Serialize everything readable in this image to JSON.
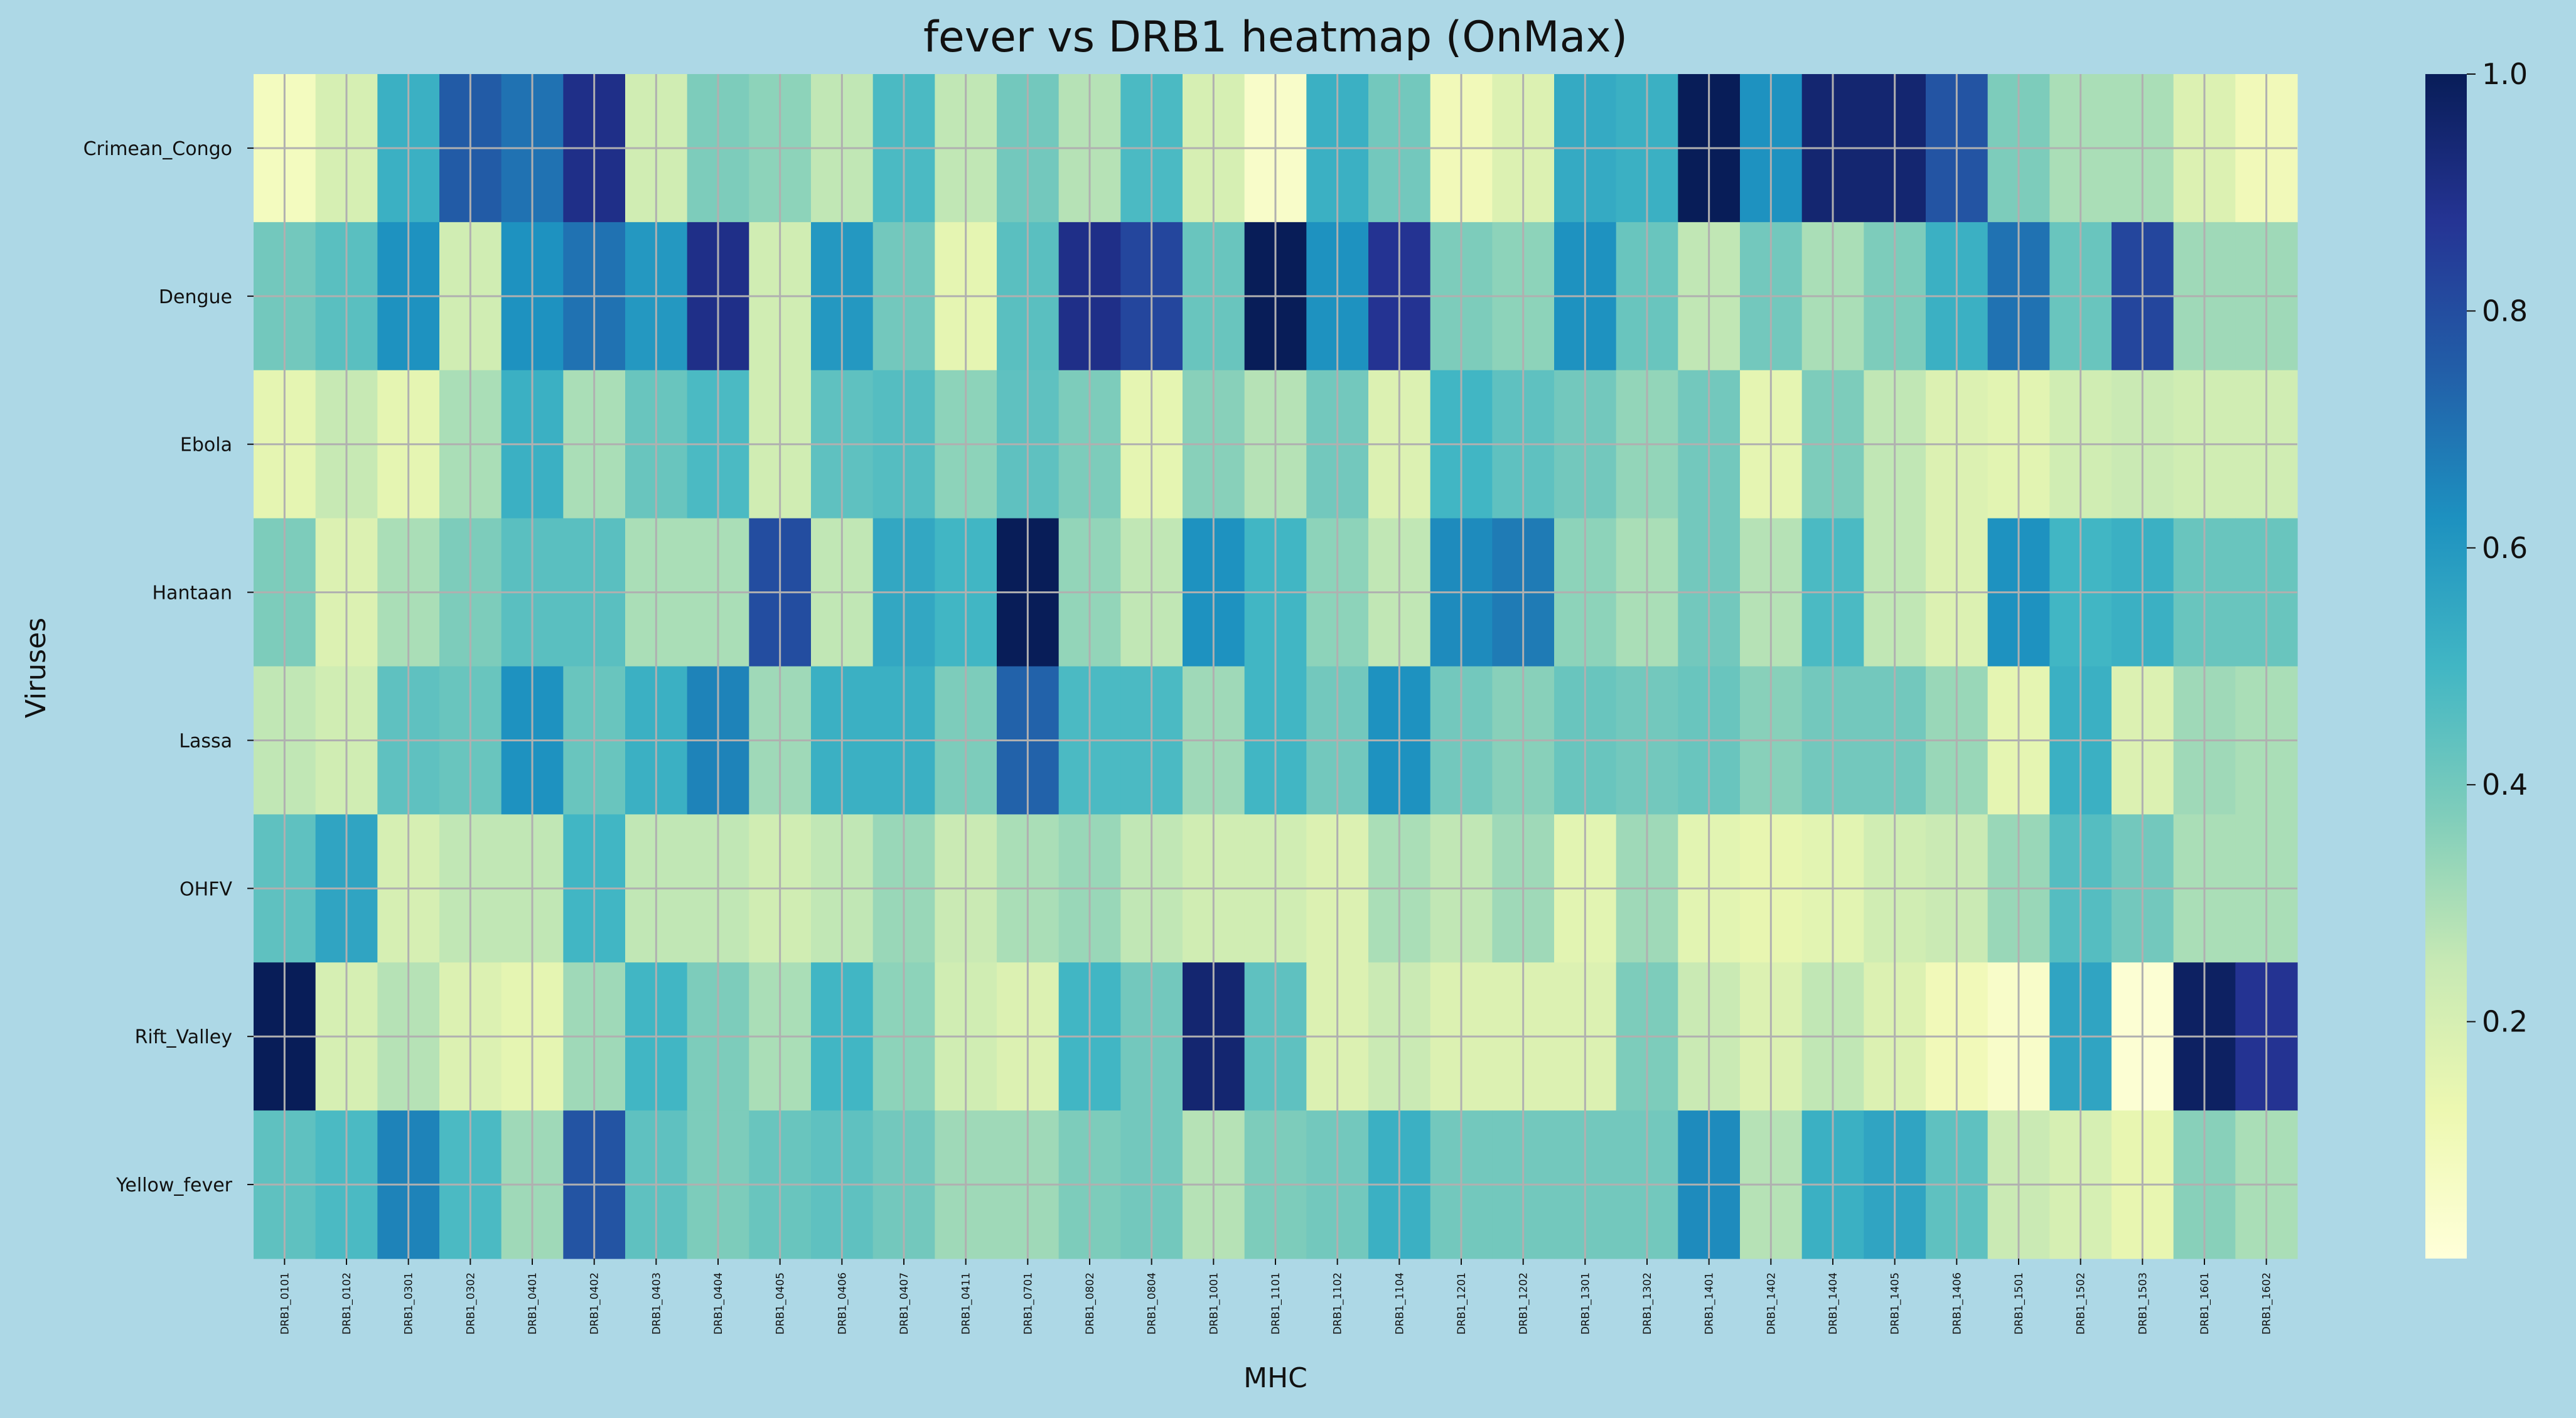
{
  "chart_data": {
    "type": "heatmap",
    "title": "fever vs DRB1 heatmap (OnMax)",
    "xlabel": "MHC",
    "ylabel": "Viruses",
    "colormap": "YlGnBu",
    "vlim": [
      0,
      1
    ],
    "colorbar_ticks": [
      0.2,
      0.4,
      0.6,
      0.8,
      1.0
    ],
    "colorbar_tick_labels": [
      "0.2",
      "0.4",
      "0.6",
      "0.8",
      "1.0"
    ],
    "grid": true,
    "colors": {
      "background": "#add8e6",
      "grid": "#b0b0b0",
      "cmap_stops": [
        "#ffffd9",
        "#edf8b1",
        "#c7e9b4",
        "#7fcdbb",
        "#41b6c4",
        "#1d91c0",
        "#225ea8",
        "#253494",
        "#081d58"
      ]
    },
    "x_labels": [
      "DRB1_0101",
      "DRB1_0102",
      "DRB1_0301",
      "DRB1_0302",
      "DRB1_0401",
      "DRB1_0402",
      "DRB1_0403",
      "DRB1_0404",
      "DRB1_0405",
      "DRB1_0406",
      "DRB1_0407",
      "DRB1_0411",
      "DRB1_0701",
      "DRB1_0802",
      "DRB1_0804",
      "DRB1_1001",
      "DRB1_1101",
      "DRB1_1102",
      "DRB1_1104",
      "DRB1_1201",
      "DRB1_1202",
      "DRB1_1301",
      "DRB1_1302",
      "DRB1_1401",
      "DRB1_1402",
      "DRB1_1404",
      "DRB1_1405",
      "DRB1_1406",
      "DRB1_1501",
      "DRB1_1502",
      "DRB1_1503",
      "DRB1_1601",
      "DRB1_1602"
    ],
    "y_labels": [
      "Crimean_Congo",
      "Dengue",
      "Ebola",
      "Hantaan",
      "Lassa",
      "OHFV",
      "Rift_Valley",
      "Yellow_fever"
    ],
    "values": [
      [
        0.08,
        0.2,
        0.52,
        0.76,
        0.7,
        0.9,
        0.22,
        0.38,
        0.35,
        0.26,
        0.48,
        0.26,
        0.4,
        0.28,
        0.48,
        0.2,
        0.05,
        0.52,
        0.4,
        0.1,
        0.18,
        0.54,
        0.52,
        1.0,
        0.62,
        0.95,
        0.95,
        0.78,
        0.38,
        0.3,
        0.3,
        0.18,
        0.1
      ],
      [
        0.4,
        0.45,
        0.62,
        0.22,
        0.62,
        0.7,
        0.6,
        0.9,
        0.22,
        0.6,
        0.4,
        0.15,
        0.45,
        0.9,
        0.82,
        0.42,
        1.0,
        0.62,
        0.88,
        0.38,
        0.35,
        0.62,
        0.42,
        0.26,
        0.4,
        0.3,
        0.38,
        0.52,
        0.7,
        0.42,
        0.82,
        0.32,
        0.32
      ],
      [
        0.15,
        0.25,
        0.15,
        0.3,
        0.52,
        0.3,
        0.42,
        0.48,
        0.22,
        0.44,
        0.46,
        0.35,
        0.44,
        0.38,
        0.15,
        0.36,
        0.28,
        0.4,
        0.18,
        0.5,
        0.44,
        0.4,
        0.34,
        0.4,
        0.15,
        0.38,
        0.26,
        0.18,
        0.16,
        0.22,
        0.24,
        0.22,
        0.22
      ],
      [
        0.38,
        0.18,
        0.3,
        0.38,
        0.45,
        0.45,
        0.3,
        0.3,
        0.8,
        0.26,
        0.55,
        0.5,
        1.0,
        0.34,
        0.26,
        0.62,
        0.5,
        0.35,
        0.26,
        0.64,
        0.68,
        0.35,
        0.3,
        0.4,
        0.28,
        0.48,
        0.26,
        0.18,
        0.62,
        0.5,
        0.52,
        0.42,
        0.42
      ],
      [
        0.26,
        0.22,
        0.44,
        0.42,
        0.62,
        0.42,
        0.52,
        0.66,
        0.32,
        0.52,
        0.52,
        0.38,
        0.74,
        0.48,
        0.48,
        0.32,
        0.5,
        0.4,
        0.62,
        0.4,
        0.36,
        0.42,
        0.4,
        0.42,
        0.36,
        0.4,
        0.4,
        0.33,
        0.15,
        0.52,
        0.18,
        0.32,
        0.3
      ],
      [
        0.44,
        0.56,
        0.2,
        0.26,
        0.26,
        0.5,
        0.26,
        0.26,
        0.22,
        0.26,
        0.33,
        0.24,
        0.3,
        0.33,
        0.26,
        0.22,
        0.22,
        0.18,
        0.3,
        0.26,
        0.32,
        0.16,
        0.32,
        0.16,
        0.14,
        0.16,
        0.22,
        0.24,
        0.33,
        0.46,
        0.4,
        0.3,
        0.3
      ],
      [
        1.0,
        0.2,
        0.28,
        0.18,
        0.15,
        0.32,
        0.5,
        0.38,
        0.3,
        0.5,
        0.35,
        0.22,
        0.18,
        0.5,
        0.4,
        0.95,
        0.44,
        0.18,
        0.24,
        0.18,
        0.18,
        0.18,
        0.38,
        0.24,
        0.18,
        0.26,
        0.18,
        0.1,
        0.05,
        0.56,
        0.02,
        0.98,
        0.88
      ],
      [
        0.44,
        0.48,
        0.66,
        0.48,
        0.32,
        0.78,
        0.44,
        0.38,
        0.42,
        0.44,
        0.4,
        0.32,
        0.32,
        0.38,
        0.4,
        0.28,
        0.38,
        0.4,
        0.52,
        0.4,
        0.4,
        0.4,
        0.4,
        0.64,
        0.28,
        0.52,
        0.56,
        0.44,
        0.24,
        0.2,
        0.14,
        0.36,
        0.3
      ]
    ]
  }
}
